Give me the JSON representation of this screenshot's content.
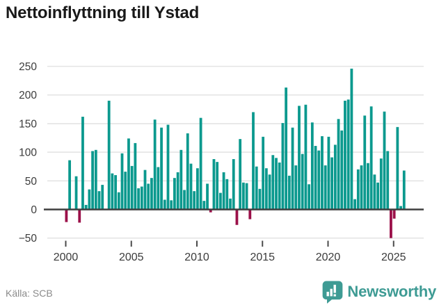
{
  "title": "Nettoinflyttning till Ystad",
  "source": "Källa: SCB",
  "branding": {
    "name": "Newsworthy"
  },
  "colors": {
    "positive_bar": "#0b998e",
    "negative_bar": "#9b1049",
    "gridline": "#e4e4e4",
    "zero_axis": "#3f3f3f",
    "axis_text": "#3b3b3b",
    "tick_mark": "#4a4a4a",
    "title_text": "#191919",
    "muted_text": "#8b8b8b",
    "brand_teal": "#3e9b94"
  },
  "chart_data": {
    "type": "bar",
    "title": "Nettoinflyttning till Ystad",
    "frequency": "quarterly",
    "start": "2000-Q1",
    "end": "2025-Q4",
    "xlabel": "",
    "ylabel": "",
    "ylim": [
      -75,
      265
    ],
    "grid": "horizontal",
    "legend": "none",
    "y_ticks": [
      250,
      200,
      150,
      100,
      50,
      0,
      -50
    ],
    "y_tick_labels": [
      "250",
      "200",
      "150",
      "100",
      "50",
      "0",
      "−50"
    ],
    "x_tick_labels": [
      "2000",
      "2005",
      "2010",
      "2015",
      "2020",
      "2025"
    ],
    "values": [
      -22,
      86,
      0,
      58,
      -23,
      162,
      8,
      35,
      102,
      104,
      32,
      43,
      0,
      190,
      63,
      60,
      30,
      98,
      66,
      124,
      76,
      116,
      37,
      40,
      69,
      45,
      55,
      157,
      74,
      143,
      17,
      148,
      16,
      55,
      65,
      104,
      34,
      133,
      80,
      32,
      72,
      160,
      15,
      45,
      -5,
      88,
      83,
      29,
      65,
      53,
      19,
      88,
      -27,
      123,
      47,
      46,
      -17,
      170,
      75,
      36,
      127,
      72,
      61,
      95,
      90,
      82,
      151,
      213,
      59,
      143,
      77,
      181,
      97,
      183,
      44,
      152,
      111,
      103,
      128,
      77,
      127,
      91,
      113,
      158,
      138,
      190,
      192,
      246,
      18,
      70,
      77,
      164,
      81,
      180,
      61,
      47,
      89,
      171,
      102,
      -50,
      -16,
      144,
      6,
      68
    ]
  }
}
